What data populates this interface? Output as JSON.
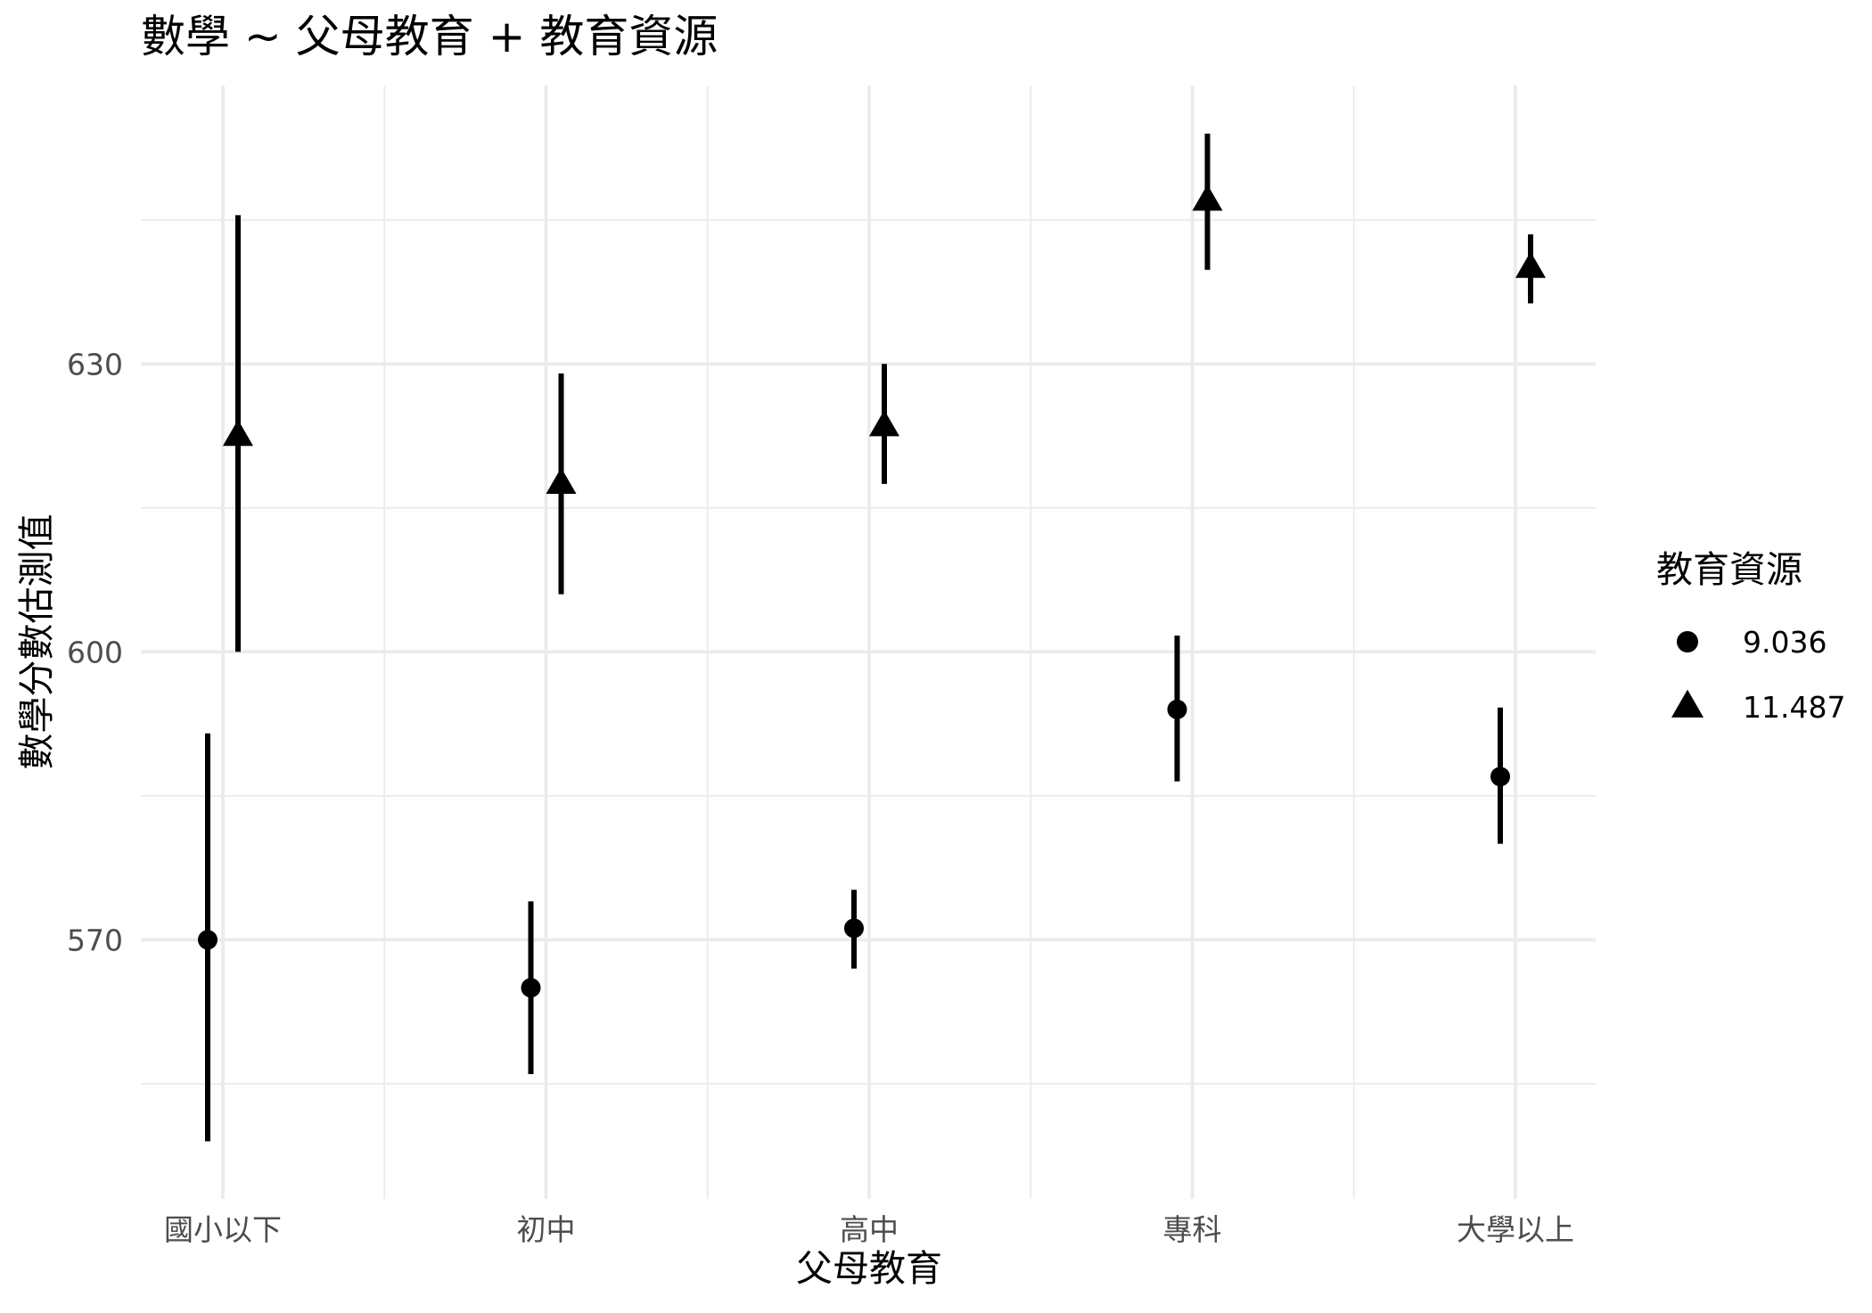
{
  "chart_data": {
    "type": "scatter",
    "title": "數學 ~ 父母教育 + 教育資源",
    "xlabel": "父母教育",
    "ylabel": "數學分數估測值",
    "categories": [
      "國小以下",
      "初中",
      "高中",
      "專科",
      "大學以上"
    ],
    "yticks": [
      570,
      600,
      630
    ],
    "ylim": [
      543,
      659
    ],
    "grid": true,
    "legend": {
      "title": "教育資源",
      "position": "right"
    },
    "series": [
      {
        "name": "9.036",
        "shape": "circle",
        "values": [
          570.0,
          565.0,
          571.2,
          594.0,
          587.0
        ],
        "lower": [
          549.0,
          556.0,
          567.0,
          586.5,
          580.0
        ],
        "upper": [
          591.5,
          574.0,
          575.2,
          601.7,
          594.2
        ]
      },
      {
        "name": "11.487",
        "shape": "triangle",
        "values": [
          622.5,
          617.5,
          623.5,
          647.0,
          640.0
        ],
        "lower": [
          600.0,
          606.0,
          617.5,
          639.8,
          636.3
        ],
        "upper": [
          645.5,
          629.0,
          630.0,
          654.0,
          643.5
        ]
      }
    ],
    "colors": {
      "points": "#000000",
      "grid": "#ebebeb",
      "tick_text": "#4d4d4d",
      "background": "#ffffff"
    }
  }
}
